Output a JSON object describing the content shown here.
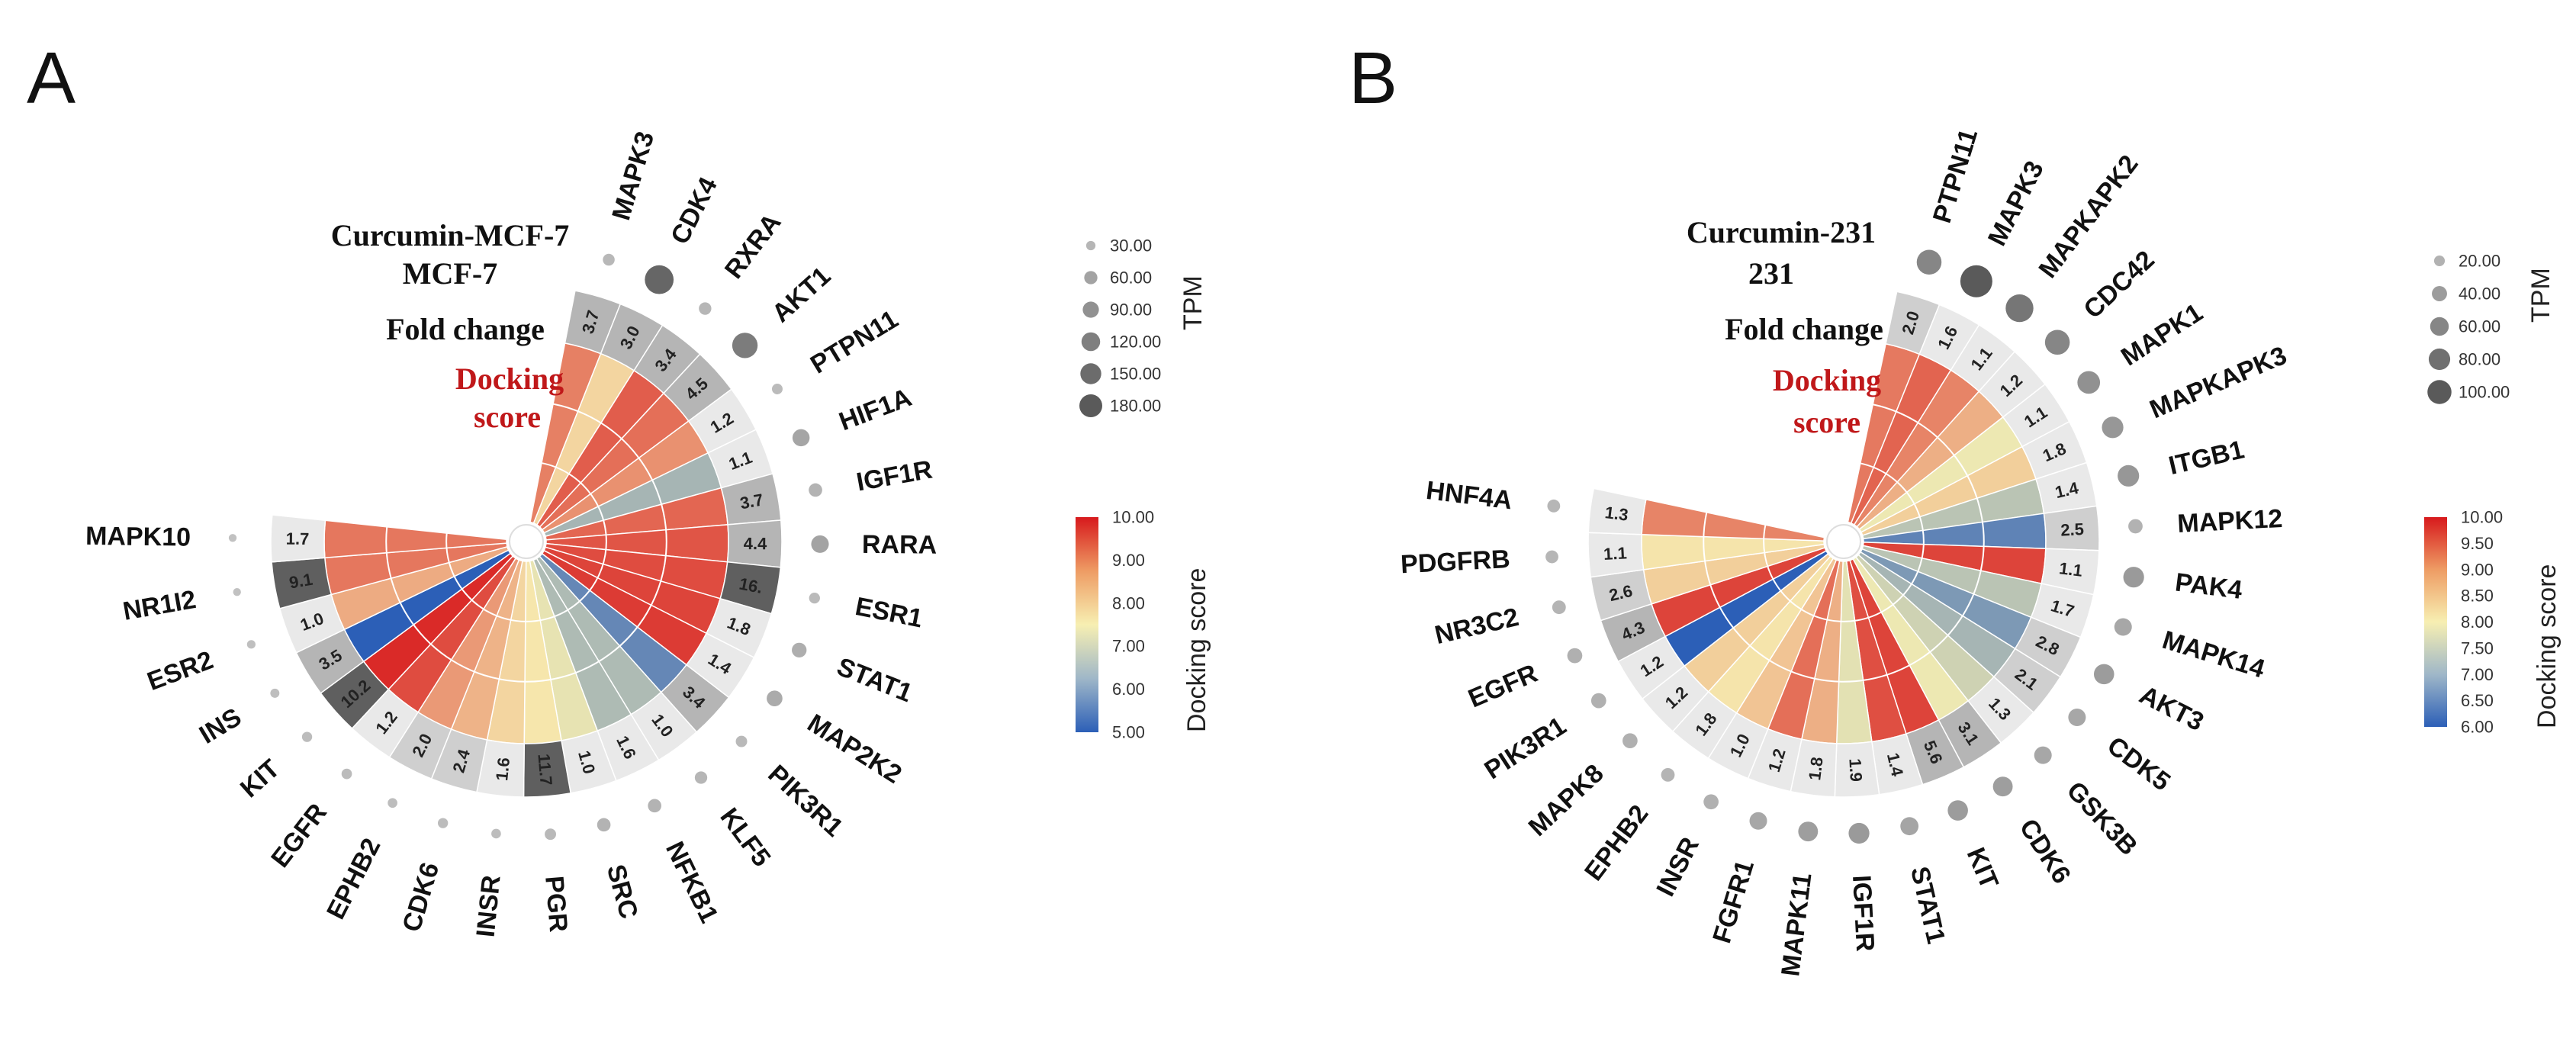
{
  "chart_data": [
    {
      "type": "radial-heatmap",
      "panel": "A",
      "title_lines": [
        "Curcumin-MCF-7",
        "MCF-7",
        "Fold change"
      ],
      "title_red_lines": [
        "Docking",
        "score"
      ],
      "genes": [
        "MAPK3",
        "CDK4",
        "RXRA",
        "AKT1",
        "PTPN11",
        "HIF1A",
        "IGF1R",
        "RARA",
        "ESR1",
        "STAT1",
        "MAP2K2",
        "PIK3R1",
        "KLF5",
        "NFKB1",
        "SRC",
        "PGR",
        "INSR",
        "CDK6",
        "EPHB2",
        "EGFR",
        "KIT",
        "INS",
        "ESR2",
        "NR1I2",
        "MAPK10"
      ],
      "fold_change": [
        "3.7",
        "3.0",
        "3.4",
        "4.5",
        "1.2",
        "1.1",
        "3.7",
        "4.4",
        "16.",
        "1.8",
        "1.4",
        "3.4",
        "1.0",
        "1.6",
        "1.0",
        "11.7",
        "1.6",
        "2.4",
        "2.0",
        "1.2",
        "10.2",
        "3.5",
        "1.0",
        "9.1",
        "1.7"
      ],
      "docking_score": [
        8.8,
        7.8,
        9.2,
        9.0,
        8.6,
        6.5,
        9.1,
        9.3,
        9.4,
        9.5,
        9.6,
        5.7,
        6.6,
        6.6,
        7.3,
        7.6,
        7.8,
        8.2,
        8.5,
        9.4,
        9.8,
        5.0,
        8.3,
        8.9,
        8.9
      ],
      "tpm": [
        27,
        160,
        30,
        125,
        22,
        57,
        35,
        60,
        23,
        42,
        48,
        25,
        30,
        35,
        35,
        25,
        18,
        20,
        18,
        21,
        20,
        16,
        14,
        12,
        12
      ],
      "sectors": {
        "start_deg": 11,
        "span_deg": 265
      },
      "tpm_legend": {
        "title": "TPM",
        "values": [
          "30.00",
          "60.00",
          "90.00",
          "120.00",
          "150.00",
          "180.00"
        ],
        "max": 180
      },
      "color_legend": {
        "title": "Docking score",
        "ticks": [
          "10.00",
          "9.00",
          "8.00",
          "7.00",
          "6.00",
          "5.00"
        ],
        "min": 5,
        "max": 10
      },
      "colors": {
        "high": "#d7191c",
        "mid": "#f7efb2",
        "low": "#2c5fb7"
      }
    },
    {
      "type": "radial-heatmap",
      "panel": "B",
      "title_lines": [
        "Curcumin-231",
        "231",
        "Fold change"
      ],
      "title_red_lines": [
        "Docking",
        "score"
      ],
      "genes": [
        "PTPN11",
        "MAPK3",
        "MAPKAPK2",
        "CDC42",
        "MAPK1",
        "MAPKAPK3",
        "ITGB1",
        "MAPK12",
        "PAK4",
        "MAPK14",
        "AKT3",
        "CDK5",
        "GSK3B",
        "CDK6",
        "KIT",
        "STAT1",
        "IGF1R",
        "MAPK11",
        "FGFR1",
        "INSR",
        "EPHB2",
        "MAPK8",
        "PIK3R1",
        "EGFR",
        "NR3C2",
        "PDGFRB",
        "HNF4A"
      ],
      "fold_change": [
        "2.0",
        "1.6",
        "1.1",
        "1.2",
        "1.1",
        "1.8",
        "1.4",
        "2.5",
        "1.1",
        "1.7",
        "2.8",
        "2.1",
        "1.3",
        "3.1",
        "5.6",
        "1.4",
        "1.9",
        "1.8",
        "1.2",
        "1.0",
        "1.8",
        "1.2",
        "1.2",
        "4.3",
        "2.6",
        "1.1",
        "1.3"
      ],
      "docking_score": [
        9.1,
        9.3,
        9.0,
        8.6,
        7.9,
        8.3,
        7.4,
        6.5,
        9.6,
        7.4,
        6.8,
        7.2,
        7.6,
        7.9,
        9.6,
        9.5,
        7.8,
        8.6,
        9.2,
        8.4,
        8.1,
        8.3,
        6.0,
        9.6,
        8.3,
        8.1,
        9.0
      ],
      "tpm": [
        60,
        100,
        75,
        60,
        50,
        45,
        45,
        20,
        42,
        30,
        40,
        30,
        30,
        38,
        40,
        32,
        42,
        38,
        30,
        22,
        18,
        22,
        22,
        22,
        18,
        16,
        16
      ],
      "sectors": {
        "start_deg": 12,
        "span_deg": 270
      },
      "tpm_legend": {
        "title": "TPM",
        "values": [
          "20.00",
          "40.00",
          "60.00",
          "80.00",
          "100.00"
        ],
        "max": 100
      },
      "color_legend": {
        "title": "Docking score",
        "ticks": [
          "10.00",
          "9.50",
          "9.00",
          "8.50",
          "8.00",
          "7.50",
          "7.00",
          "6.50",
          "6.00"
        ],
        "min": 6,
        "max": 10
      },
      "colors": {
        "high": "#d7191c",
        "mid": "#f7efb2",
        "low": "#2c5fb7"
      }
    }
  ]
}
